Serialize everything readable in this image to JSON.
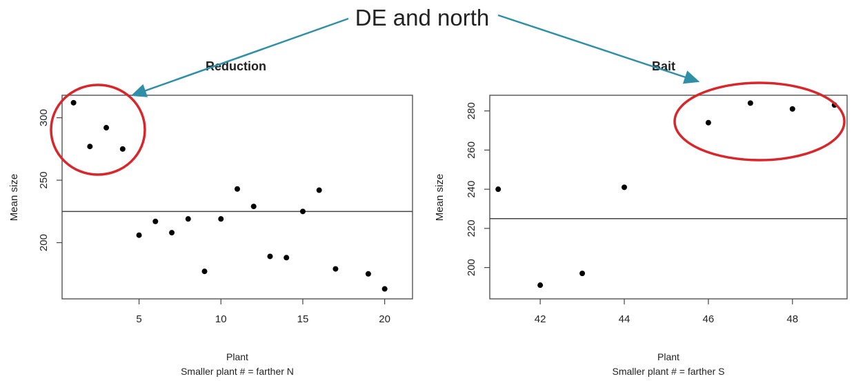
{
  "headline": "DE and north",
  "colors": {
    "arrow": "#2f8fa6",
    "highlight": "#d8262a",
    "points": "#000000"
  },
  "chart_data": [
    {
      "type": "scatter",
      "title": "Reduction",
      "xlabel": "Plant",
      "subtitle": "Smaller plant # = farther N",
      "ylabel": "Mean size",
      "xlim": [
        0.3,
        21.7
      ],
      "ylim": [
        155,
        318
      ],
      "xticks": [
        "5",
        "10",
        "15",
        "20"
      ],
      "yticks": [
        "200",
        "250",
        "300"
      ],
      "x": [
        1,
        2,
        3,
        4,
        5,
        6,
        7,
        8,
        9,
        10,
        11,
        12,
        13,
        14,
        15,
        16,
        17,
        19,
        20
      ],
      "y": [
        312,
        277,
        292,
        275,
        206,
        217,
        208,
        219,
        177,
        219,
        243,
        229,
        189,
        188,
        225,
        242,
        179,
        175,
        163
      ],
      "reference_line": 225,
      "highlighted_points": [
        1,
        2,
        3,
        4
      ]
    },
    {
      "type": "scatter",
      "title": "Bait",
      "xlabel": "Plant",
      "subtitle": "Smaller plant # = farther S",
      "ylabel": "Mean size",
      "xlim": [
        40.8,
        49.3
      ],
      "ylim": [
        184,
        288
      ],
      "xticks": [
        "42",
        "44",
        "46",
        "48"
      ],
      "yticks": [
        "200",
        "220",
        "240",
        "260",
        "280"
      ],
      "x": [
        41,
        42,
        43,
        44,
        46,
        47,
        48,
        49
      ],
      "y": [
        240,
        191,
        197,
        241,
        274,
        284,
        281,
        283
      ],
      "reference_line": 225,
      "highlighted_points": [
        46,
        47,
        48,
        49
      ]
    }
  ]
}
